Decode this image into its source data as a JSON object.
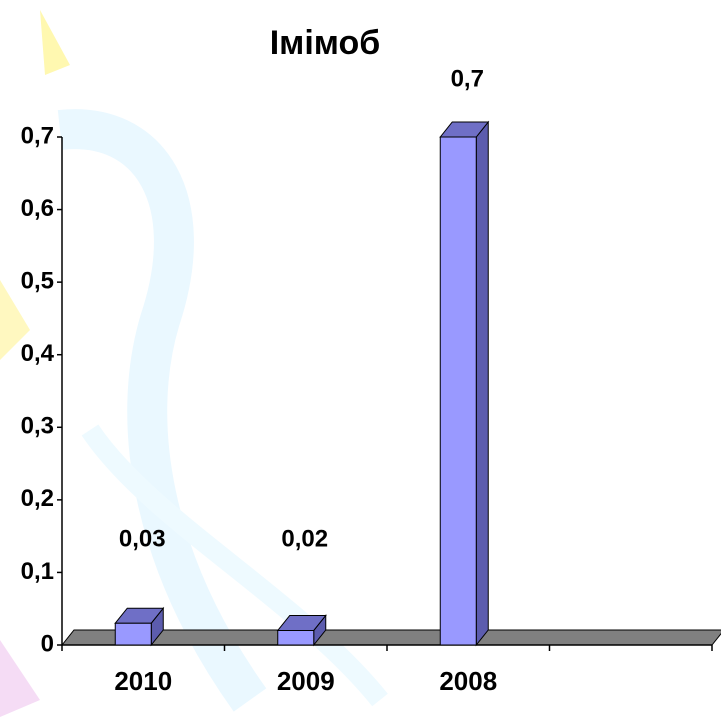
{
  "chart_data": {
    "type": "bar3d",
    "title": "Імімоб",
    "categories": [
      "2010",
      "2009",
      "2008",
      null
    ],
    "values": [
      0.03,
      0.02,
      0.7,
      null
    ],
    "value_labels": [
      "0,03",
      "0,02",
      "0,7",
      null
    ],
    "color": "#9999ff",
    "ylim": [
      0,
      0.7
    ],
    "yticks": [
      0,
      {
        "value": 0.1,
        "label": "0,1"
      },
      {
        "value": 0.2,
        "label": "0,2"
      },
      {
        "value": 0.3,
        "label": "0,3"
      },
      {
        "value": 0.4,
        "label": "0,4"
      },
      {
        "value": 0.5,
        "label": "0,5"
      },
      {
        "value": 0.6,
        "label": "0,6"
      },
      {
        "value": 0.7,
        "label": "0,7"
      }
    ],
    "grid": false
  }
}
